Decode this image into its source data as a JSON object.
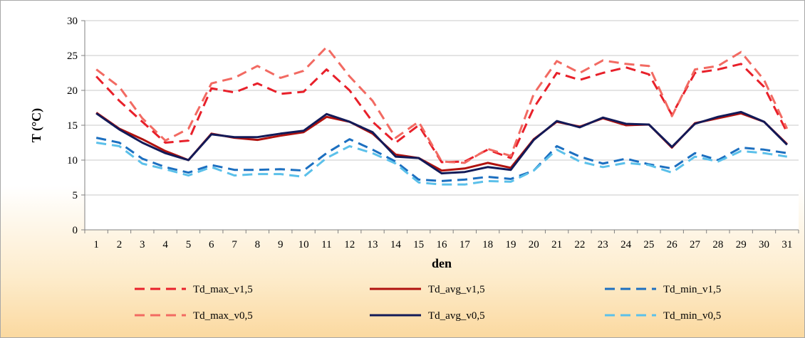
{
  "chart_data": {
    "type": "line",
    "xlabel": "den",
    "ylabel": "T (°C)",
    "ylim": [
      0,
      30
    ],
    "yticks": [
      0,
      5,
      10,
      15,
      20,
      25,
      30
    ],
    "x": [
      "1",
      "2",
      "3",
      "4",
      "5",
      "6",
      "7",
      "8",
      "9",
      "10",
      "11",
      "12",
      "13",
      "14",
      "15",
      "16",
      "17",
      "18",
      "19",
      "20",
      "21",
      "22",
      "23",
      "24",
      "25",
      "26",
      "27",
      "28",
      "29",
      "30",
      "31"
    ],
    "grid": "horizontal",
    "legend_position": "bottom",
    "series": [
      {
        "name": "Td_max_v1,5",
        "color": "#e8202a",
        "dash": "dashed",
        "values": [
          22.0,
          18.5,
          15.5,
          12.5,
          12.8,
          20.3,
          19.7,
          21.0,
          19.5,
          19.8,
          23.0,
          20.0,
          15.5,
          12.5,
          15.0,
          9.7,
          9.8,
          11.5,
          10.3,
          17.5,
          22.5,
          21.5,
          22.5,
          23.3,
          22.3,
          16.5,
          22.5,
          23.0,
          23.8,
          20.5,
          14.0
        ]
      },
      {
        "name": "Td_avg_v1,5",
        "color": "#b0120e",
        "dash": "solid",
        "values": [
          16.8,
          14.5,
          13.0,
          11.3,
          10.0,
          13.8,
          13.2,
          12.9,
          13.5,
          14.0,
          16.2,
          15.5,
          13.8,
          10.8,
          10.3,
          8.5,
          8.8,
          9.6,
          8.9,
          13.0,
          15.5,
          14.8,
          16.0,
          15.0,
          15.1,
          11.8,
          15.3,
          16.0,
          16.7,
          15.5,
          12.3
        ]
      },
      {
        "name": "Td_min_v1,5",
        "color": "#1c6fc0",
        "dash": "dashed",
        "values": [
          13.2,
          12.5,
          10.2,
          9.0,
          8.2,
          9.3,
          8.6,
          8.6,
          8.7,
          8.5,
          11.0,
          13.0,
          11.5,
          9.8,
          7.2,
          7.0,
          7.2,
          7.6,
          7.3,
          8.5,
          12.0,
          10.5,
          9.5,
          10.2,
          9.4,
          8.8,
          11.0,
          10.0,
          11.8,
          11.5,
          11.0
        ]
      },
      {
        "name": "Td_max_v0,5",
        "color": "#f26a62",
        "dash": "dashed",
        "values": [
          23.0,
          20.5,
          16.0,
          12.8,
          14.5,
          21.0,
          21.8,
          23.5,
          21.8,
          22.8,
          26.2,
          22.0,
          18.5,
          13.2,
          15.5,
          9.8,
          9.6,
          11.6,
          10.6,
          19.5,
          24.2,
          22.5,
          24.3,
          23.8,
          23.5,
          16.3,
          23.0,
          23.5,
          25.5,
          21.5,
          14.5
        ]
      },
      {
        "name": "Td_avg_v0,5",
        "color": "#121a58",
        "dash": "solid",
        "values": [
          16.7,
          14.4,
          12.5,
          11.0,
          10.0,
          13.7,
          13.3,
          13.3,
          13.8,
          14.2,
          16.6,
          15.5,
          14.0,
          10.5,
          10.3,
          8.1,
          8.3,
          9.0,
          8.6,
          12.9,
          15.6,
          14.7,
          16.1,
          15.2,
          15.1,
          11.9,
          15.2,
          16.2,
          16.9,
          15.5,
          12.2
        ]
      },
      {
        "name": "Td_min_v0,5",
        "color": "#5bc0ea",
        "dash": "dashed",
        "values": [
          12.5,
          12.0,
          9.5,
          8.7,
          7.8,
          9.0,
          7.8,
          8.0,
          8.0,
          7.6,
          10.3,
          12.0,
          11.0,
          9.5,
          6.8,
          6.5,
          6.5,
          7.0,
          6.9,
          8.5,
          11.5,
          9.8,
          9.0,
          9.6,
          9.3,
          8.2,
          10.5,
          9.8,
          11.3,
          11.0,
          10.5
        ]
      }
    ]
  }
}
